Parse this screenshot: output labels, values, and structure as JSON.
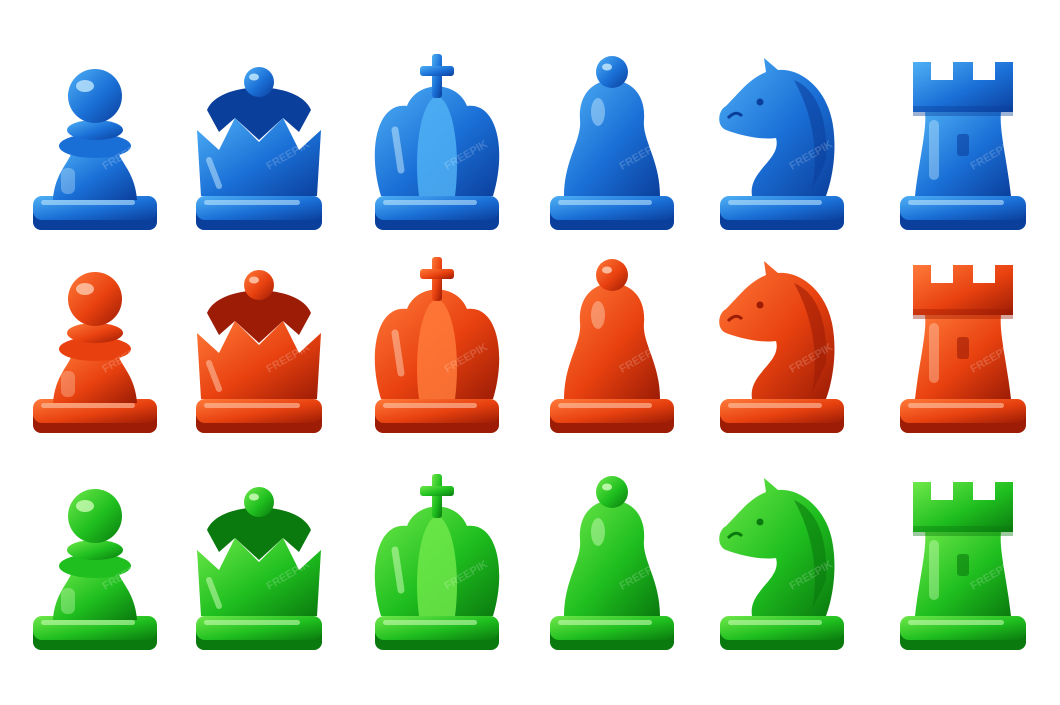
{
  "watermark": "FREEPIK",
  "pieces": [
    "pawn",
    "queen",
    "king",
    "bishop",
    "knight",
    "rook"
  ],
  "sets": [
    {
      "name": "blue",
      "base": "#1a6fd6",
      "light": "#4fb0f5",
      "dark": "#0b3f9c",
      "shine": "#c9ecff"
    },
    {
      "name": "red",
      "base": "#e8410f",
      "light": "#ff7a3a",
      "dark": "#9c1c05",
      "shine": "#ffd2b8"
    },
    {
      "name": "green",
      "base": "#1fbf1f",
      "light": "#6fe84a",
      "dark": "#0a7a0e",
      "shine": "#d4ffc0"
    }
  ]
}
